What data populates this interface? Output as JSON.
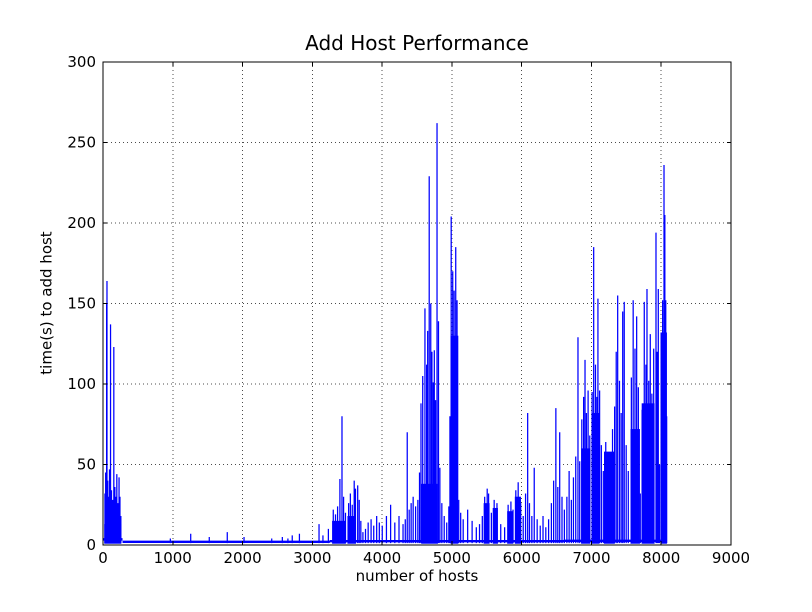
{
  "chart_data": {
    "type": "line",
    "title": "Add Host Performance",
    "xlabel": "number of hosts",
    "ylabel": "time(s) to add host",
    "xlim": [
      0,
      9000
    ],
    "ylim": [
      0,
      300
    ],
    "xticks": [
      0,
      1000,
      2000,
      3000,
      4000,
      5000,
      6000,
      7000,
      8000,
      9000
    ],
    "yticks": [
      0,
      50,
      100,
      150,
      200,
      250,
      300
    ],
    "grid": true,
    "grid_style": "dotted",
    "line_color": "#0000ff",
    "frame_color": "#000000",
    "background": "#ffffff",
    "data_x_end": 8082,
    "baseline_segments": [
      [
        0,
        280,
        3.5
      ],
      [
        280,
        3250,
        2.0
      ],
      [
        3250,
        6600,
        2.4
      ],
      [
        6600,
        8082,
        2.6
      ]
    ],
    "bands": [
      [
        18,
        262,
        13
      ],
      [
        3283,
        3480,
        15
      ],
      [
        3503,
        3625,
        18
      ],
      [
        4560,
        4800,
        38
      ],
      [
        4980,
        5092,
        130
      ],
      [
        5455,
        5540,
        26
      ],
      [
        5585,
        5660,
        23
      ],
      [
        5792,
        5880,
        21
      ],
      [
        5902,
        5990,
        30
      ],
      [
        6852,
        6985,
        60
      ],
      [
        7000,
        7115,
        82
      ],
      [
        7180,
        7335,
        58
      ],
      [
        7560,
        7695,
        72
      ],
      [
        7720,
        7905,
        88
      ],
      [
        7990,
        8082,
        132
      ]
    ],
    "spikes": [
      [
        28,
        32
      ],
      [
        38,
        45
      ],
      [
        52,
        150
      ],
      [
        57,
        164
      ],
      [
        68,
        40
      ],
      [
        80,
        30
      ],
      [
        93,
        47
      ],
      [
        108,
        137
      ],
      [
        122,
        34
      ],
      [
        137,
        28
      ],
      [
        155,
        123
      ],
      [
        170,
        36
      ],
      [
        183,
        30
      ],
      [
        198,
        44
      ],
      [
        214,
        26
      ],
      [
        230,
        42
      ],
      [
        243,
        30
      ],
      [
        256,
        18
      ],
      [
        965,
        4
      ],
      [
        1257,
        7
      ],
      [
        1523,
        5
      ],
      [
        1781,
        8
      ],
      [
        2021,
        5
      ],
      [
        2418,
        4
      ],
      [
        2570,
        5
      ],
      [
        2650,
        4
      ],
      [
        2712,
        6
      ],
      [
        2815,
        7
      ],
      [
        3096,
        13
      ],
      [
        3152,
        6
      ],
      [
        3230,
        10
      ],
      [
        3300,
        22
      ],
      [
        3332,
        19
      ],
      [
        3362,
        24
      ],
      [
        3395,
        41
      ],
      [
        3425,
        80
      ],
      [
        3448,
        30
      ],
      [
        3475,
        20
      ],
      [
        3520,
        26
      ],
      [
        3545,
        32
      ],
      [
        3572,
        25
      ],
      [
        3600,
        40
      ],
      [
        3618,
        35
      ],
      [
        3650,
        37
      ],
      [
        3672,
        28
      ],
      [
        3695,
        15
      ],
      [
        3725,
        8
      ],
      [
        3762,
        10
      ],
      [
        3800,
        14
      ],
      [
        3842,
        16
      ],
      [
        3880,
        12
      ],
      [
        3922,
        18
      ],
      [
        3960,
        14
      ],
      [
        4002,
        12
      ],
      [
        4062,
        18
      ],
      [
        4122,
        25
      ],
      [
        4182,
        14
      ],
      [
        4242,
        18
      ],
      [
        4300,
        13
      ],
      [
        4332,
        16
      ],
      [
        4360,
        70
      ],
      [
        4388,
        22
      ],
      [
        4416,
        26
      ],
      [
        4445,
        30
      ],
      [
        4480,
        24
      ],
      [
        4512,
        28
      ],
      [
        4536,
        45
      ],
      [
        4557,
        88
      ],
      [
        4582,
        105
      ],
      [
        4614,
        147
      ],
      [
        4638,
        112
      ],
      [
        4653,
        133
      ],
      [
        4675,
        229
      ],
      [
        4697,
        150
      ],
      [
        4714,
        120
      ],
      [
        4733,
        101
      ],
      [
        4748,
        121
      ],
      [
        4766,
        90
      ],
      [
        4787,
        262
      ],
      [
        4808,
        139
      ],
      [
        4828,
        48
      ],
      [
        4856,
        26
      ],
      [
        4890,
        18
      ],
      [
        4926,
        14
      ],
      [
        4956,
        24
      ],
      [
        4972,
        80
      ],
      [
        4990,
        204
      ],
      [
        5012,
        170
      ],
      [
        5032,
        158
      ],
      [
        5055,
        185
      ],
      [
        5074,
        152
      ],
      [
        5098,
        28
      ],
      [
        5126,
        20
      ],
      [
        5162,
        16
      ],
      [
        5226,
        22
      ],
      [
        5290,
        15
      ],
      [
        5350,
        11
      ],
      [
        5396,
        13
      ],
      [
        5436,
        18
      ],
      [
        5470,
        30
      ],
      [
        5506,
        35
      ],
      [
        5526,
        32
      ],
      [
        5566,
        20
      ],
      [
        5606,
        28
      ],
      [
        5646,
        26
      ],
      [
        5700,
        13
      ],
      [
        5756,
        11
      ],
      [
        5806,
        25
      ],
      [
        5846,
        27
      ],
      [
        5876,
        22
      ],
      [
        5916,
        34
      ],
      [
        5950,
        39
      ],
      [
        5986,
        26
      ],
      [
        6022,
        18
      ],
      [
        6056,
        32
      ],
      [
        6086,
        82
      ],
      [
        6112,
        26
      ],
      [
        6146,
        18
      ],
      [
        6180,
        48
      ],
      [
        6222,
        16
      ],
      [
        6266,
        12
      ],
      [
        6306,
        18
      ],
      [
        6346,
        11
      ],
      [
        6386,
        16
      ],
      [
        6426,
        26
      ],
      [
        6458,
        40
      ],
      [
        6490,
        85
      ],
      [
        6518,
        36
      ],
      [
        6545,
        70
      ],
      [
        6578,
        30
      ],
      [
        6612,
        22
      ],
      [
        6648,
        30
      ],
      [
        6680,
        46
      ],
      [
        6712,
        28
      ],
      [
        6742,
        42
      ],
      [
        6775,
        55
      ],
      [
        6807,
        129
      ],
      [
        6832,
        52
      ],
      [
        6862,
        78
      ],
      [
        6888,
        92
      ],
      [
        6908,
        115
      ],
      [
        6928,
        82
      ],
      [
        6952,
        96
      ],
      [
        6976,
        68
      ],
      [
        7010,
        95
      ],
      [
        7032,
        185
      ],
      [
        7058,
        112
      ],
      [
        7078,
        92
      ],
      [
        7093,
        153
      ],
      [
        7117,
        96
      ],
      [
        7142,
        62
      ],
      [
        7170,
        46
      ],
      [
        7205,
        64
      ],
      [
        7242,
        42
      ],
      [
        7272,
        56
      ],
      [
        7302,
        72
      ],
      [
        7332,
        86
      ],
      [
        7355,
        120
      ],
      [
        7376,
        155
      ],
      [
        7402,
        102
      ],
      [
        7426,
        82
      ],
      [
        7448,
        145
      ],
      [
        7470,
        151
      ],
      [
        7498,
        62
      ],
      [
        7528,
        46
      ],
      [
        7572,
        104
      ],
      [
        7598,
        152
      ],
      [
        7624,
        122
      ],
      [
        7648,
        142
      ],
      [
        7672,
        98
      ],
      [
        7700,
        32
      ],
      [
        7726,
        84
      ],
      [
        7757,
        151
      ],
      [
        7781,
        112
      ],
      [
        7796,
        159
      ],
      [
        7821,
        102
      ],
      [
        7843,
        131
      ],
      [
        7866,
        94
      ],
      [
        7892,
        122
      ],
      [
        7925,
        194
      ],
      [
        7942,
        120
      ],
      [
        7958,
        159
      ],
      [
        7976,
        50
      ],
      [
        8002,
        132
      ],
      [
        8020,
        152
      ],
      [
        8040,
        236
      ],
      [
        8052,
        205
      ],
      [
        8065,
        152
      ],
      [
        8078,
        80
      ]
    ]
  }
}
